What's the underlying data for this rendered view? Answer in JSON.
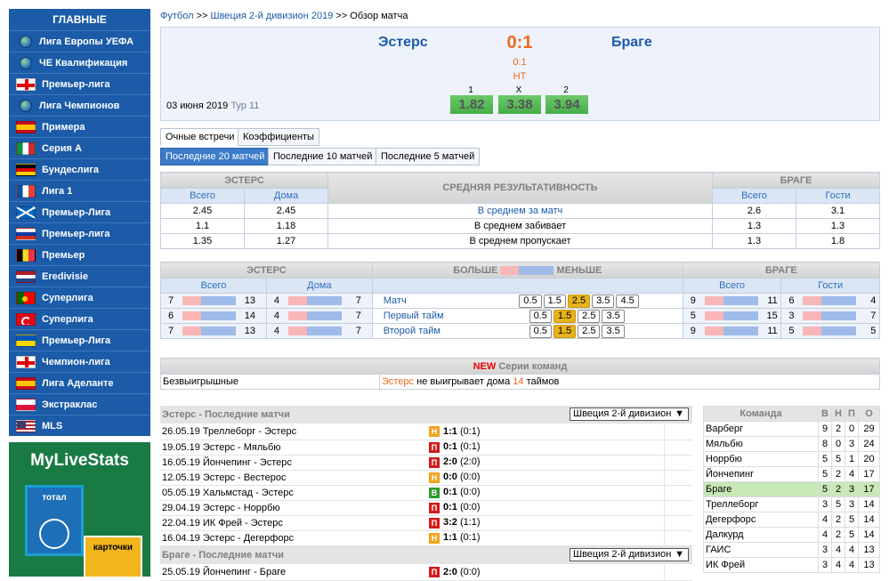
{
  "sidebar": {
    "title": "ГЛАВНЫЕ",
    "items": [
      {
        "label": "Лига Европы УЕФА",
        "icon": "globe"
      },
      {
        "label": "ЧЕ Квалификация",
        "icon": "globe"
      },
      {
        "label": "Премьер-лига",
        "icon": "eng"
      },
      {
        "label": "Лига Чемпионов",
        "icon": "globe"
      },
      {
        "label": "Примера",
        "icon": "esp"
      },
      {
        "label": "Серия А",
        "icon": "ita"
      },
      {
        "label": "Бундеслига",
        "icon": "ger"
      },
      {
        "label": "Лига 1",
        "icon": "fra"
      },
      {
        "label": "Премьер-Лига",
        "icon": "sco"
      },
      {
        "label": "Премьер-лига",
        "icon": "rus"
      },
      {
        "label": "Премьер",
        "icon": "bel"
      },
      {
        "label": "Eredivisie",
        "icon": "ned"
      },
      {
        "label": "Суперлига",
        "icon": "por"
      },
      {
        "label": "Суперлига",
        "icon": "tur"
      },
      {
        "label": "Премьер-Лига",
        "icon": "ukr"
      },
      {
        "label": "Чемпион-лига",
        "icon": "eng"
      },
      {
        "label": "Лига Аделанте",
        "icon": "esp"
      },
      {
        "label": "Экстраклас",
        "icon": "pol"
      },
      {
        "label": "MLS",
        "icon": "usa"
      }
    ]
  },
  "promo": {
    "logo": "MyLiveStats",
    "card1": "тотал",
    "card2": "карточки"
  },
  "breadcrumb": {
    "l1": "Футбол",
    "sep": ">>",
    "l2": "Швеция 2-й дивизион 2019",
    "current": "Обзор матча"
  },
  "match": {
    "home": "Эстерс",
    "away": "Браге",
    "score": "0:1",
    "score_ht": "0:1",
    "status": "НТ",
    "date": "03 июня 2019",
    "round": "Тур 11",
    "odds": [
      {
        "label": "1",
        "value": "1.82"
      },
      {
        "label": "X",
        "value": "3.38"
      },
      {
        "label": "2",
        "value": "3.94"
      }
    ]
  },
  "tabs": {
    "t1": "Очные встречи",
    "t2": "Коэффициенты",
    "s1": "Последние 20 матчей",
    "s2": "Последние 10 матчей",
    "s3": "Последние 5 матчей"
  },
  "avg": {
    "home": "ЭСТЕРС",
    "mid": "СРЕДНЯЯ РЕЗУЛЬТАТИВНОСТЬ",
    "away": "БРАГЕ",
    "all": "Всего",
    "home_col": "Дома",
    "away_all": "Всего",
    "away_col": "Гости",
    "rows": [
      {
        "a": "2.45",
        "b": "2.45",
        "label": "В среднем за матч",
        "c": "2.6",
        "d": "3.1"
      },
      {
        "a": "1.1",
        "b": "1.18",
        "label": "В среднем забивает",
        "c": "1.3",
        "d": "1.3"
      },
      {
        "a": "1.35",
        "b": "1.27",
        "label": "В среднем пропускает",
        "c": "1.3",
        "d": "1.8"
      }
    ]
  },
  "ou": {
    "home": "ЭСТЕРС",
    "more": "БОЛЬШЕ",
    "less": "МЕНЬШЕ",
    "away": "БРАГЕ",
    "all": "Всего",
    "home_col": "Дома",
    "away_all": "Всего",
    "away_col": "Гости",
    "rows": [
      {
        "label": "Матч",
        "a1": "7",
        "a2": "13",
        "b1": "4",
        "b2": "7",
        "lines": [
          "0.5",
          "1.5",
          "2.5",
          "3.5",
          "4.5"
        ],
        "hl": 2,
        "c1": "9",
        "c2": "11",
        "d1": "6",
        "d2": "4"
      },
      {
        "label": "Первый тайм",
        "a1": "6",
        "a2": "14",
        "b1": "4",
        "b2": "7",
        "lines": [
          "0.5",
          "1.5",
          "2.5",
          "3.5"
        ],
        "hl": 1,
        "c1": "5",
        "c2": "15",
        "d1": "3",
        "d2": "7"
      },
      {
        "label": "Второй тайм",
        "a1": "7",
        "a2": "13",
        "b1": "4",
        "b2": "7",
        "lines": [
          "0.5",
          "1.5",
          "2.5",
          "3.5"
        ],
        "hl": 1,
        "c1": "9",
        "c2": "11",
        "d1": "5",
        "d2": "5"
      }
    ]
  },
  "series": {
    "new": "NEW",
    "title": "Серии команд",
    "label": "Безвыигрышные",
    "team": "Эстерс",
    "text1": "не выигрывает дома",
    "count": "14",
    "text2": "таймов"
  },
  "last_home": {
    "title": "Эстерс - Последние матчи",
    "select": "Швеция 2-й дивизион",
    "matches": [
      {
        "date": "26.05.19",
        "teams": "Треллеборг - Эстерс",
        "res": "Н",
        "score": "1:1",
        "ht": "(0:1)"
      },
      {
        "date": "19.05.19",
        "teams": "Эстерс - Мяльбю",
        "res": "П",
        "score": "0:1",
        "ht": "(0:1)"
      },
      {
        "date": "16.05.19",
        "teams": "Йончепинг - Эстерс",
        "res": "П",
        "score": "2:0",
        "ht": "(2:0)"
      },
      {
        "date": "12.05.19",
        "teams": "Эстерс - Вестерос",
        "res": "Н",
        "score": "0:0",
        "ht": "(0:0)"
      },
      {
        "date": "05.05.19",
        "teams": "Хальмстад - Эстерс",
        "res": "В",
        "score": "0:1",
        "ht": "(0:0)"
      },
      {
        "date": "29.04.19",
        "teams": "Эстерс - Норрбю",
        "res": "П",
        "score": "0:1",
        "ht": "(0:0)"
      },
      {
        "date": "22.04.19",
        "teams": "ИК Фрей - Эстерс",
        "res": "П",
        "score": "3:2",
        "ht": "(1:1)"
      },
      {
        "date": "16.04.19",
        "teams": "Эстерс - Дегерфорс",
        "res": "Н",
        "score": "1:1",
        "ht": "(0:1)"
      }
    ]
  },
  "last_away": {
    "title": "Браге - Последние матчи",
    "select": "Швеция 2-й дивизион",
    "matches": [
      {
        "date": "25.05.19",
        "teams": "Йончепинг - Браге",
        "res": "П",
        "score": "2:0",
        "ht": "(0:0)"
      }
    ]
  },
  "standings": {
    "h_team": "Команда",
    "h_w": "В",
    "h_d": "Н",
    "h_l": "П",
    "h_o": "О",
    "rows": [
      {
        "team": "Варберг",
        "w": "9",
        "d": "2",
        "l": "0",
        "o": "29"
      },
      {
        "team": "Мяльбю",
        "w": "8",
        "d": "0",
        "l": "3",
        "o": "24"
      },
      {
        "team": "Норрбю",
        "w": "5",
        "d": "5",
        "l": "1",
        "o": "20"
      },
      {
        "team": "Йончепинг",
        "w": "5",
        "d": "2",
        "l": "4",
        "o": "17"
      },
      {
        "team": "Браге",
        "w": "5",
        "d": "2",
        "l": "3",
        "o": "17",
        "me": true
      },
      {
        "team": "Треллеборг",
        "w": "3",
        "d": "5",
        "l": "3",
        "o": "14"
      },
      {
        "team": "Дегерфорс",
        "w": "4",
        "d": "2",
        "l": "5",
        "o": "14"
      },
      {
        "team": "Далкурд",
        "w": "4",
        "d": "2",
        "l": "5",
        "o": "14"
      },
      {
        "team": "ГАИС",
        "w": "3",
        "d": "4",
        "l": "4",
        "o": "13"
      },
      {
        "team": "ИК Фрей",
        "w": "3",
        "d": "4",
        "l": "4",
        "o": "13"
      }
    ]
  }
}
